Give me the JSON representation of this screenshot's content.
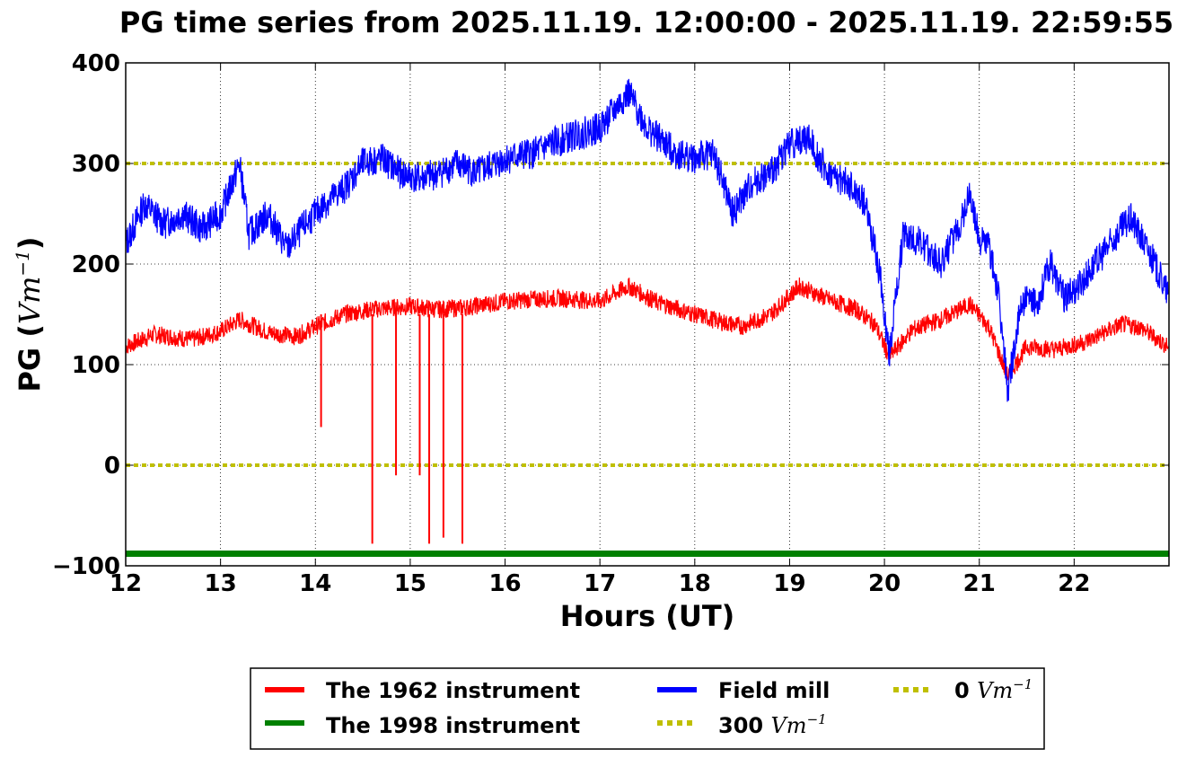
{
  "chart_data": {
    "type": "line",
    "title": "PG time series from 2025.11.19. 12:00:00 - 2025.11.19. 22:59:55",
    "xlabel": "Hours (UT)",
    "ylabel": "PG (",
    "ylabel_unit": "Vm",
    "ylabel_exp": "−1",
    "ylabel_close": ")",
    "xlim": [
      12,
      23
    ],
    "ylim": [
      -100,
      400
    ],
    "x_ticks": [
      12,
      13,
      14,
      15,
      16,
      17,
      18,
      19,
      20,
      21,
      22
    ],
    "x_tick_labels": [
      "12",
      "13",
      "14",
      "15",
      "16",
      "17",
      "18",
      "19",
      "20",
      "21",
      "22"
    ],
    "y_ticks": [
      -100,
      0,
      100,
      200,
      300,
      400
    ],
    "y_tick_labels": [
      "−100",
      "0",
      "100",
      "200",
      "300",
      "400"
    ],
    "grid": true,
    "legend_position": "bottom-center",
    "series": [
      {
        "name": "The 1962 instrument",
        "color": "#ff0000",
        "x": [
          12.0,
          12.3,
          12.7,
          13.0,
          13.2,
          13.5,
          13.8,
          14.0,
          14.3,
          14.6,
          15.0,
          15.3,
          15.6,
          16.0,
          16.3,
          16.6,
          17.0,
          17.3,
          17.6,
          18.0,
          18.3,
          18.5,
          18.8,
          19.1,
          19.4,
          19.7,
          19.9,
          20.05,
          20.3,
          20.6,
          20.9,
          21.1,
          21.3,
          21.5,
          21.8,
          22.1,
          22.5,
          22.7,
          22.99
        ],
        "y": [
          118,
          130,
          125,
          133,
          145,
          132,
          128,
          138,
          150,
          155,
          158,
          155,
          157,
          163,
          165,
          166,
          163,
          178,
          162,
          150,
          142,
          138,
          150,
          178,
          165,
          155,
          140,
          108,
          135,
          145,
          160,
          138,
          88,
          118,
          115,
          122,
          140,
          137,
          118
        ],
        "dips": [
          {
            "x": 14.06,
            "y": 38
          },
          {
            "x": 14.6,
            "y": -78
          },
          {
            "x": 14.85,
            "y": -10
          },
          {
            "x": 15.1,
            "y": -10
          },
          {
            "x": 15.2,
            "y": -78
          },
          {
            "x": 15.35,
            "y": -72
          },
          {
            "x": 15.55,
            "y": -78
          }
        ]
      },
      {
        "name": "The 1998 instrument",
        "color": "#008000",
        "x": [
          12,
          23
        ],
        "y": [
          -88,
          -88
        ]
      },
      {
        "name": "Field mill",
        "color": "#0000ff",
        "x": [
          12.0,
          12.2,
          12.4,
          12.6,
          12.8,
          13.0,
          13.2,
          13.3,
          13.5,
          13.7,
          13.9,
          14.1,
          14.3,
          14.5,
          14.7,
          14.9,
          15.1,
          15.3,
          15.5,
          15.7,
          16.0,
          16.3,
          16.5,
          16.8,
          17.0,
          17.3,
          17.5,
          17.8,
          18.0,
          18.2,
          18.4,
          18.6,
          18.8,
          19.0,
          19.2,
          19.4,
          19.6,
          19.8,
          19.95,
          20.05,
          20.2,
          20.4,
          20.6,
          20.8,
          20.9,
          21.0,
          21.1,
          21.2,
          21.3,
          21.45,
          21.6,
          21.75,
          21.9,
          22.1,
          22.3,
          22.5,
          22.6,
          22.8,
          22.99
        ],
        "y": [
          220,
          260,
          240,
          250,
          235,
          250,
          300,
          230,
          250,
          215,
          240,
          260,
          275,
          300,
          305,
          290,
          285,
          290,
          300,
          290,
          305,
          310,
          320,
          330,
          335,
          370,
          335,
          310,
          305,
          310,
          250,
          280,
          290,
          320,
          325,
          290,
          280,
          260,
          190,
          110,
          230,
          220,
          200,
          240,
          270,
          225,
          220,
          170,
          75,
          165,
          160,
          200,
          165,
          185,
          210,
          235,
          245,
          210,
          170
        ]
      }
    ],
    "reference_lines": [
      {
        "name": "300",
        "unit": "Vm",
        "exp": "−1",
        "value": 300,
        "color": "#bfbf00"
      },
      {
        "name": "0",
        "unit": "Vm",
        "exp": "−1",
        "value": 0,
        "color": "#bfbf00"
      }
    ]
  }
}
